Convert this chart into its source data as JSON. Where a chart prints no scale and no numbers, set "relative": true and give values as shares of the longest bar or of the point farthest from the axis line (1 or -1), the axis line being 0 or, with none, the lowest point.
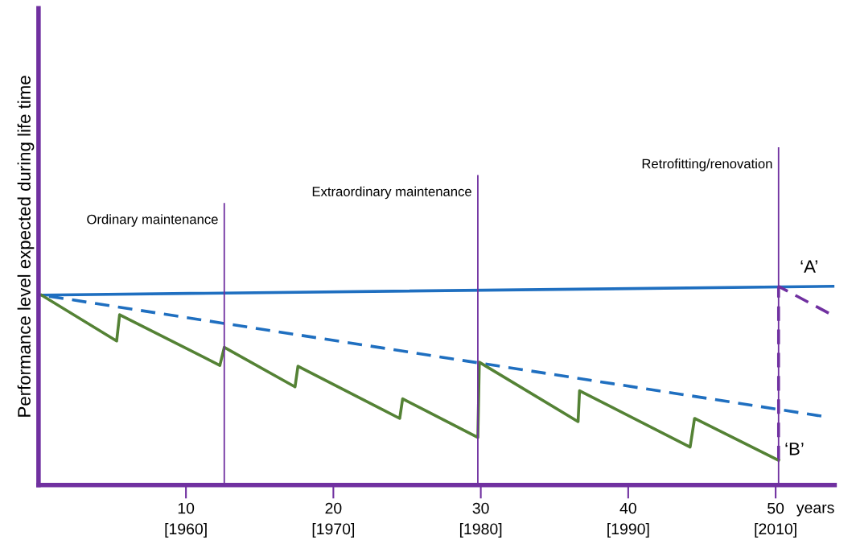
{
  "chart_data": {
    "type": "line",
    "relative": true,
    "xlabel": "years",
    "ylabel": "Performance level expected during life time",
    "xlim": [
      0,
      54
    ],
    "xticks": [
      10,
      20,
      30,
      40,
      50
    ],
    "annotations": [
      "[1960]",
      "[1970]",
      "[1980]",
      "[1990]",
      "[2010]"
    ],
    "series": [
      {
        "name": "‘A’",
        "color": "#1f6fc0",
        "line_style": "solid",
        "x": [
          0.2,
          53.9
        ],
        "values": [
          0.956,
          1.0
        ]
      },
      {
        "color": "#1f6fc0",
        "line_style": "dashed",
        "x": [
          0.2,
          53.1
        ],
        "values": [
          0.956,
          0.347
        ]
      },
      {
        "color": "#7030a0",
        "line_style": "dashed",
        "x": [
          50.2,
          53.6
        ],
        "values": [
          1.0,
          0.865
        ]
      },
      {
        "color": "#7030a0",
        "line_style": "dashed",
        "x": [
          50.2,
          50.2
        ],
        "values": [
          1.0,
          0.124
        ]
      },
      {
        "name": "‘B’",
        "color": "#548235",
        "line_style": "solid",
        "x": [
          0.2,
          5.3,
          5.5,
          12.3,
          12.6,
          17.4,
          17.6,
          24.5,
          24.7,
          29.8,
          29.9,
          36.6,
          36.7,
          44.2,
          44.5,
          50.2
        ],
        "values": [
          0.956,
          0.725,
          0.857,
          0.602,
          0.693,
          0.494,
          0.598,
          0.335,
          0.434,
          0.239,
          0.618,
          0.319,
          0.474,
          0.191,
          0.335,
          0.124
        ]
      }
    ],
    "ref_lines": [
      {
        "axis": "x",
        "value": 12.6,
        "label": "Ordinary maintenance",
        "color": "#7030a0"
      },
      {
        "axis": "x",
        "value": 29.8,
        "label": "Extraordinary maintenance",
        "color": "#7030a0"
      },
      {
        "axis": "x",
        "value": 50.2,
        "label": "Retrofitting/renovation",
        "color": "#7030a0"
      }
    ],
    "grid": false,
    "legend": false,
    "marker": "none"
  }
}
